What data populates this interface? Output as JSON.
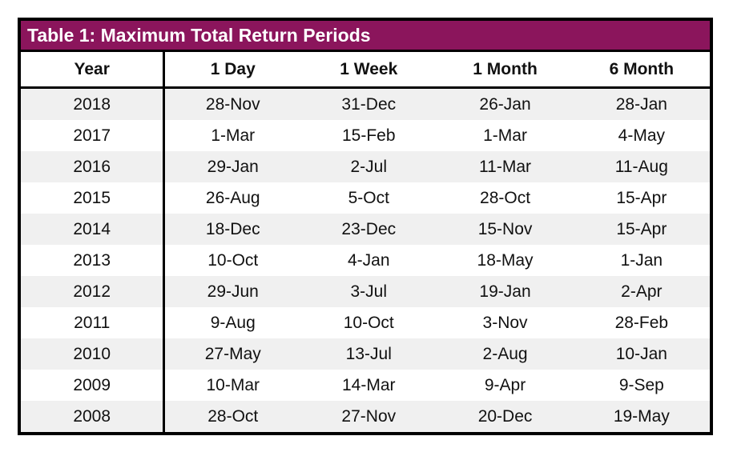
{
  "title": "Table 1: Maximum Total Return Periods",
  "colors": {
    "title_background": "#8B155C",
    "title_text": "#FFFFFF",
    "row_band": "#F0F0F0",
    "border": "#000000"
  },
  "table": {
    "columns": [
      "Year",
      "1 Day",
      "1 Week",
      "1 Month",
      "6 Month"
    ],
    "rows": [
      [
        "2018",
        "28-Nov",
        "31-Dec",
        "26-Jan",
        "28-Jan"
      ],
      [
        "2017",
        "1-Mar",
        "15-Feb",
        "1-Mar",
        "4-May"
      ],
      [
        "2016",
        "29-Jan",
        "2-Jul",
        "11-Mar",
        "11-Aug"
      ],
      [
        "2015",
        "26-Aug",
        "5-Oct",
        "28-Oct",
        "15-Apr"
      ],
      [
        "2014",
        "18-Dec",
        "23-Dec",
        "15-Nov",
        "15-Apr"
      ],
      [
        "2013",
        "10-Oct",
        "4-Jan",
        "18-May",
        "1-Jan"
      ],
      [
        "2012",
        "29-Jun",
        "3-Jul",
        "19-Jan",
        "2-Apr"
      ],
      [
        "2011",
        "9-Aug",
        "10-Oct",
        "3-Nov",
        "28-Feb"
      ],
      [
        "2010",
        "27-May",
        "13-Jul",
        "2-Aug",
        "10-Jan"
      ],
      [
        "2009",
        "10-Mar",
        "14-Mar",
        "9-Apr",
        "9-Sep"
      ],
      [
        "2008",
        "28-Oct",
        "27-Nov",
        "20-Dec",
        "19-May"
      ]
    ]
  }
}
